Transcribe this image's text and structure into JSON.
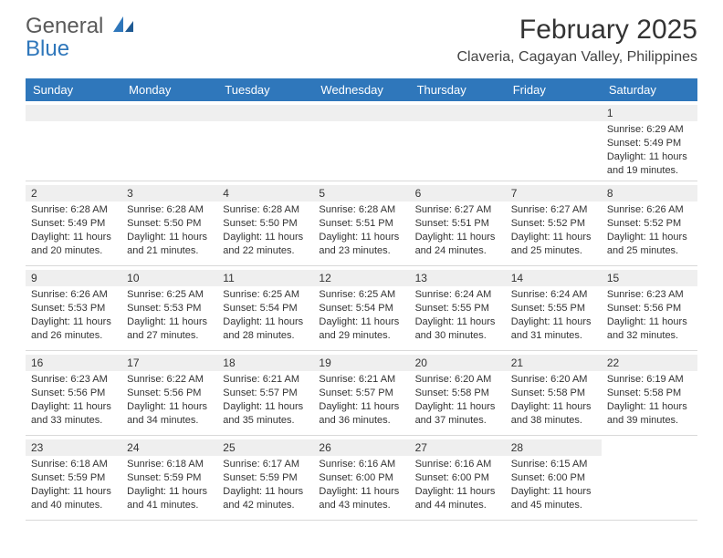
{
  "logo": {
    "line1": "General",
    "line2": "Blue"
  },
  "title": "February 2025",
  "location": "Claveria, Cagayan Valley, Philippines",
  "colors": {
    "header_bg": "#2f77bb",
    "header_text": "#ffffff",
    "strip_bg": "#efefef",
    "border": "#d9d9d9",
    "text": "#333333",
    "logo_gray": "#5a5a5a",
    "logo_blue": "#2f77bb"
  },
  "weekdays": [
    "Sunday",
    "Monday",
    "Tuesday",
    "Wednesday",
    "Thursday",
    "Friday",
    "Saturday"
  ],
  "weeks": [
    [
      {
        "day": null
      },
      {
        "day": null
      },
      {
        "day": null
      },
      {
        "day": null
      },
      {
        "day": null
      },
      {
        "day": null
      },
      {
        "day": "1",
        "sunrise": "Sunrise: 6:29 AM",
        "sunset": "Sunset: 5:49 PM",
        "daylight1": "Daylight: 11 hours",
        "daylight2": "and 19 minutes."
      }
    ],
    [
      {
        "day": "2",
        "sunrise": "Sunrise: 6:28 AM",
        "sunset": "Sunset: 5:49 PM",
        "daylight1": "Daylight: 11 hours",
        "daylight2": "and 20 minutes."
      },
      {
        "day": "3",
        "sunrise": "Sunrise: 6:28 AM",
        "sunset": "Sunset: 5:50 PM",
        "daylight1": "Daylight: 11 hours",
        "daylight2": "and 21 minutes."
      },
      {
        "day": "4",
        "sunrise": "Sunrise: 6:28 AM",
        "sunset": "Sunset: 5:50 PM",
        "daylight1": "Daylight: 11 hours",
        "daylight2": "and 22 minutes."
      },
      {
        "day": "5",
        "sunrise": "Sunrise: 6:28 AM",
        "sunset": "Sunset: 5:51 PM",
        "daylight1": "Daylight: 11 hours",
        "daylight2": "and 23 minutes."
      },
      {
        "day": "6",
        "sunrise": "Sunrise: 6:27 AM",
        "sunset": "Sunset: 5:51 PM",
        "daylight1": "Daylight: 11 hours",
        "daylight2": "and 24 minutes."
      },
      {
        "day": "7",
        "sunrise": "Sunrise: 6:27 AM",
        "sunset": "Sunset: 5:52 PM",
        "daylight1": "Daylight: 11 hours",
        "daylight2": "and 25 minutes."
      },
      {
        "day": "8",
        "sunrise": "Sunrise: 6:26 AM",
        "sunset": "Sunset: 5:52 PM",
        "daylight1": "Daylight: 11 hours",
        "daylight2": "and 25 minutes."
      }
    ],
    [
      {
        "day": "9",
        "sunrise": "Sunrise: 6:26 AM",
        "sunset": "Sunset: 5:53 PM",
        "daylight1": "Daylight: 11 hours",
        "daylight2": "and 26 minutes."
      },
      {
        "day": "10",
        "sunrise": "Sunrise: 6:25 AM",
        "sunset": "Sunset: 5:53 PM",
        "daylight1": "Daylight: 11 hours",
        "daylight2": "and 27 minutes."
      },
      {
        "day": "11",
        "sunrise": "Sunrise: 6:25 AM",
        "sunset": "Sunset: 5:54 PM",
        "daylight1": "Daylight: 11 hours",
        "daylight2": "and 28 minutes."
      },
      {
        "day": "12",
        "sunrise": "Sunrise: 6:25 AM",
        "sunset": "Sunset: 5:54 PM",
        "daylight1": "Daylight: 11 hours",
        "daylight2": "and 29 minutes."
      },
      {
        "day": "13",
        "sunrise": "Sunrise: 6:24 AM",
        "sunset": "Sunset: 5:55 PM",
        "daylight1": "Daylight: 11 hours",
        "daylight2": "and 30 minutes."
      },
      {
        "day": "14",
        "sunrise": "Sunrise: 6:24 AM",
        "sunset": "Sunset: 5:55 PM",
        "daylight1": "Daylight: 11 hours",
        "daylight2": "and 31 minutes."
      },
      {
        "day": "15",
        "sunrise": "Sunrise: 6:23 AM",
        "sunset": "Sunset: 5:56 PM",
        "daylight1": "Daylight: 11 hours",
        "daylight2": "and 32 minutes."
      }
    ],
    [
      {
        "day": "16",
        "sunrise": "Sunrise: 6:23 AM",
        "sunset": "Sunset: 5:56 PM",
        "daylight1": "Daylight: 11 hours",
        "daylight2": "and 33 minutes."
      },
      {
        "day": "17",
        "sunrise": "Sunrise: 6:22 AM",
        "sunset": "Sunset: 5:56 PM",
        "daylight1": "Daylight: 11 hours",
        "daylight2": "and 34 minutes."
      },
      {
        "day": "18",
        "sunrise": "Sunrise: 6:21 AM",
        "sunset": "Sunset: 5:57 PM",
        "daylight1": "Daylight: 11 hours",
        "daylight2": "and 35 minutes."
      },
      {
        "day": "19",
        "sunrise": "Sunrise: 6:21 AM",
        "sunset": "Sunset: 5:57 PM",
        "daylight1": "Daylight: 11 hours",
        "daylight2": "and 36 minutes."
      },
      {
        "day": "20",
        "sunrise": "Sunrise: 6:20 AM",
        "sunset": "Sunset: 5:58 PM",
        "daylight1": "Daylight: 11 hours",
        "daylight2": "and 37 minutes."
      },
      {
        "day": "21",
        "sunrise": "Sunrise: 6:20 AM",
        "sunset": "Sunset: 5:58 PM",
        "daylight1": "Daylight: 11 hours",
        "daylight2": "and 38 minutes."
      },
      {
        "day": "22",
        "sunrise": "Sunrise: 6:19 AM",
        "sunset": "Sunset: 5:58 PM",
        "daylight1": "Daylight: 11 hours",
        "daylight2": "and 39 minutes."
      }
    ],
    [
      {
        "day": "23",
        "sunrise": "Sunrise: 6:18 AM",
        "sunset": "Sunset: 5:59 PM",
        "daylight1": "Daylight: 11 hours",
        "daylight2": "and 40 minutes."
      },
      {
        "day": "24",
        "sunrise": "Sunrise: 6:18 AM",
        "sunset": "Sunset: 5:59 PM",
        "daylight1": "Daylight: 11 hours",
        "daylight2": "and 41 minutes."
      },
      {
        "day": "25",
        "sunrise": "Sunrise: 6:17 AM",
        "sunset": "Sunset: 5:59 PM",
        "daylight1": "Daylight: 11 hours",
        "daylight2": "and 42 minutes."
      },
      {
        "day": "26",
        "sunrise": "Sunrise: 6:16 AM",
        "sunset": "Sunset: 6:00 PM",
        "daylight1": "Daylight: 11 hours",
        "daylight2": "and 43 minutes."
      },
      {
        "day": "27",
        "sunrise": "Sunrise: 6:16 AM",
        "sunset": "Sunset: 6:00 PM",
        "daylight1": "Daylight: 11 hours",
        "daylight2": "and 44 minutes."
      },
      {
        "day": "28",
        "sunrise": "Sunrise: 6:15 AM",
        "sunset": "Sunset: 6:00 PM",
        "daylight1": "Daylight: 11 hours",
        "daylight2": "and 45 minutes."
      },
      {
        "day": null
      }
    ]
  ]
}
